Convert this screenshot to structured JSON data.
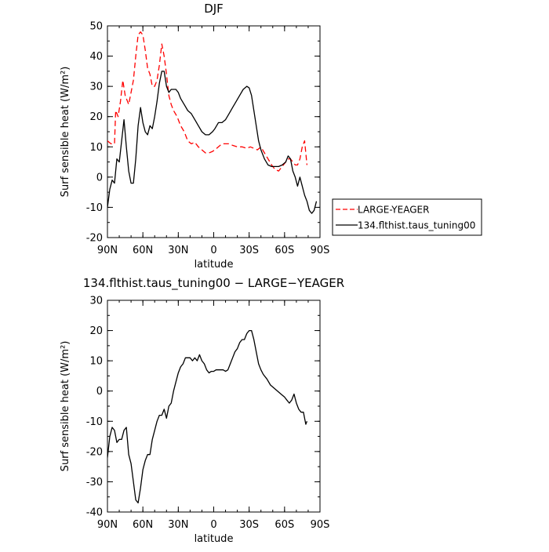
{
  "chart_data": [
    {
      "type": "line",
      "title": "DJF",
      "xlabel": "latitude",
      "ylabel": "Surf sensible heat (W/m²)",
      "xlim": [
        90,
        -90
      ],
      "ylim": [
        -20,
        50
      ],
      "x_ticks": [
        90,
        60,
        30,
        0,
        -30,
        -60,
        -90
      ],
      "x_tick_labels": [
        "90N",
        "60N",
        "30N",
        "0",
        "30S",
        "60S",
        "90S"
      ],
      "y_ticks": [
        -20,
        -10,
        0,
        10,
        20,
        30,
        40,
        50
      ],
      "y_tick_labels": [
        "-20",
        "-10",
        "0",
        "10",
        "20",
        "30",
        "40",
        "50"
      ],
      "legend_position": "right",
      "series": [
        {
          "name": "LARGE-YEAGER",
          "color": "#ff0000",
          "style": "dashed",
          "x": [
            90,
            87,
            84,
            83,
            81,
            79,
            77,
            75,
            72,
            70,
            68,
            66,
            64,
            62,
            60,
            58,
            56,
            54,
            52,
            50,
            48,
            46,
            44,
            42,
            40,
            38,
            36,
            34,
            31,
            28,
            25,
            22,
            19,
            16,
            13,
            10,
            7,
            4,
            1,
            -1,
            -4,
            -7,
            -10,
            -13,
            -16,
            -20,
            -24,
            -28,
            -31,
            -34,
            -37,
            -40,
            -43,
            -46,
            -49,
            -52,
            -55,
            -58,
            -61,
            -63,
            -65,
            -67,
            -69,
            -71,
            -73,
            -75,
            -77,
            -79
          ],
          "y": [
            12,
            11,
            11,
            22,
            20,
            25,
            32,
            27,
            24,
            28,
            32,
            40,
            47,
            48,
            47,
            42,
            36,
            34,
            30,
            30,
            32,
            37,
            44,
            40,
            34,
            27,
            24,
            22,
            20,
            17,
            15,
            12,
            11,
            11.5,
            10,
            9,
            8,
            8,
            8.5,
            9,
            10,
            11,
            11,
            11,
            10.5,
            10,
            10,
            9.5,
            10,
            9.5,
            9,
            10,
            8,
            6,
            4,
            2.5,
            2,
            3.5,
            5,
            6,
            6,
            5,
            4,
            4,
            6,
            10,
            12,
            4
          ]
        },
        {
          "name": "134.flthist.taus_tuning00",
          "color": "#000000",
          "style": "solid",
          "x": [
            90,
            88,
            86,
            84,
            82,
            80,
            78,
            76,
            74,
            72,
            70,
            68,
            66,
            64,
            62,
            60,
            58,
            56,
            54,
            52,
            50,
            48,
            46,
            44,
            42,
            40,
            38,
            36,
            34,
            32,
            30,
            28,
            25,
            22,
            19,
            16,
            13,
            10,
            7,
            4,
            1,
            -1,
            -4,
            -7,
            -10,
            -13,
            -16,
            -19,
            -22,
            -25,
            -28,
            -30,
            -32,
            -34,
            -36,
            -38,
            -40,
            -43,
            -46,
            -49,
            -52,
            -55,
            -58,
            -61,
            -63,
            -65,
            -67,
            -69,
            -71,
            -73,
            -75,
            -77,
            -79,
            -81,
            -83,
            -85,
            -87
          ],
          "y": [
            -10,
            -4,
            -1,
            -2,
            6,
            5,
            12,
            19,
            10,
            2,
            -2,
            -2,
            6,
            17,
            23,
            18,
            15,
            14,
            17,
            16,
            20,
            25,
            31,
            35,
            35,
            30,
            28,
            29,
            29,
            29,
            28,
            26,
            24,
            22,
            21,
            19,
            17,
            15,
            14,
            14,
            15,
            16,
            18,
            18,
            19,
            21,
            23,
            25,
            27,
            29,
            30,
            29.5,
            27,
            22,
            17,
            12,
            9,
            6,
            4,
            3.5,
            3.5,
            3.5,
            4,
            5,
            7,
            6,
            2,
            0,
            -3,
            0,
            -3,
            -6,
            -8,
            -11,
            -12,
            -11,
            -8
          ]
        }
      ]
    },
    {
      "type": "line",
      "title": "134.flthist.taus_tuning00 − LARGE−YEAGER",
      "xlabel": "latitude",
      "ylabel": "Surf sensible heat (W/m²)",
      "xlim": [
        90,
        -90
      ],
      "ylim": [
        -40,
        30
      ],
      "x_ticks": [
        90,
        60,
        30,
        0,
        -30,
        -60,
        -90
      ],
      "x_tick_labels": [
        "90N",
        "60N",
        "30N",
        "0",
        "30S",
        "60S",
        "90S"
      ],
      "y_ticks": [
        -40,
        -30,
        -20,
        -10,
        0,
        10,
        20,
        30
      ],
      "y_tick_labels": [
        "-40",
        "-30",
        "-20",
        "-10",
        "0",
        "10",
        "20",
        "30"
      ],
      "series": [
        {
          "color": "#000000",
          "style": "solid",
          "x": [
            90,
            88,
            86,
            84,
            82,
            80,
            78,
            76,
            74,
            72,
            70,
            68,
            66,
            64,
            62,
            60,
            58,
            56,
            54,
            52,
            50,
            48,
            46,
            44,
            42,
            40,
            38,
            36,
            34,
            32,
            30,
            28,
            26,
            24,
            22,
            20,
            18,
            16,
            14,
            12,
            10,
            8,
            6,
            4,
            2,
            0,
            -2,
            -4,
            -6,
            -8,
            -10,
            -12,
            -14,
            -16,
            -18,
            -20,
            -22,
            -24,
            -26,
            -28,
            -30,
            -32,
            -34,
            -36,
            -38,
            -40,
            -42,
            -45,
            -48,
            -51,
            -54,
            -57,
            -60,
            -62,
            -64,
            -66,
            -68,
            -70,
            -72,
            -74,
            -76,
            -78,
            -79
          ],
          "y": [
            -22,
            -15,
            -12,
            -13,
            -17,
            -16,
            -16,
            -13,
            -12,
            -21,
            -24,
            -30,
            -36,
            -37,
            -32,
            -26,
            -23,
            -21,
            -21,
            -16,
            -13,
            -10,
            -8,
            -8,
            -6,
            -9,
            -5,
            -4,
            0,
            3,
            6,
            8,
            9,
            11,
            11,
            11,
            10,
            11,
            10,
            12,
            10,
            9,
            7,
            6,
            6.5,
            6.5,
            7,
            7,
            7,
            7,
            6.5,
            7,
            9,
            11,
            13,
            14,
            16,
            17,
            17,
            19,
            20,
            20,
            17,
            13,
            9,
            7,
            5.5,
            4,
            2,
            1,
            0,
            -1,
            -2,
            -3,
            -4,
            -3,
            -1,
            -4,
            -6,
            -7,
            -7,
            -11,
            -10
          ]
        }
      ]
    }
  ]
}
